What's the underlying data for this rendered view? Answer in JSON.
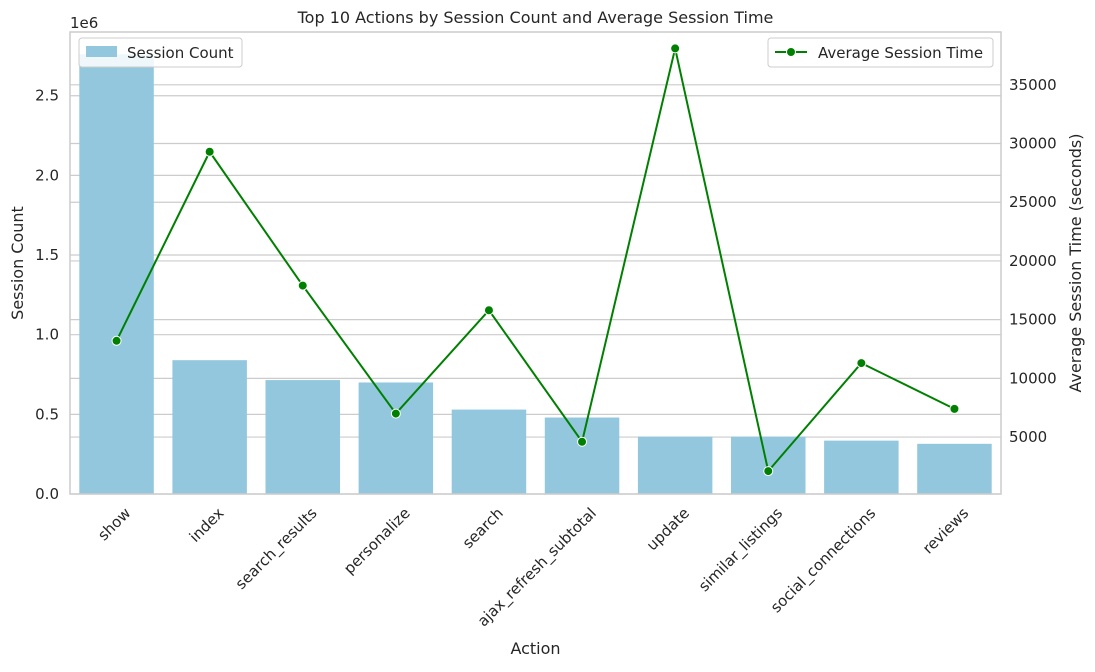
{
  "chart_data": {
    "type": "bar",
    "title": "Top 10 Actions by Session Count and Average Session Time",
    "xlabel": "Action",
    "ylabel": "Session Count",
    "y2label": "Average Session Time (seconds)",
    "y_offset_text": "1e6",
    "categories": [
      "show",
      "index",
      "search_results",
      "personalize",
      "search",
      "ajax_refresh_subtotal",
      "update",
      "similar_listings",
      "social_connections",
      "reviews"
    ],
    "series": [
      {
        "name": "Session Count",
        "type": "bar",
        "axis": "left",
        "color": "#92c7de",
        "values": [
          2760000,
          840000,
          715000,
          700000,
          530000,
          480000,
          360000,
          360000,
          335000,
          315000
        ]
      },
      {
        "name": "Average Session Time",
        "type": "line",
        "axis": "right",
        "color": "#008000",
        "values": [
          13200,
          29300,
          17900,
          7000,
          15800,
          4600,
          38100,
          2100,
          11300,
          7400
        ]
      }
    ],
    "ylim": [
      0,
      2900000
    ],
    "y2lim": [
      150,
      39500
    ],
    "yticks": [
      0,
      500000,
      1000000,
      1500000,
      2000000,
      2500000
    ],
    "ytick_labels": [
      "0.0",
      "0.5",
      "1.0",
      "1.5",
      "2.0",
      "2.5"
    ],
    "y2ticks": [
      5000,
      10000,
      15000,
      20000,
      25000,
      30000,
      35000
    ],
    "y2tick_labels": [
      "5000",
      "10000",
      "15000",
      "20000",
      "25000",
      "30000",
      "35000"
    ],
    "legend_left": "upper-left",
    "legend_right": "upper-right",
    "grid": true
  }
}
